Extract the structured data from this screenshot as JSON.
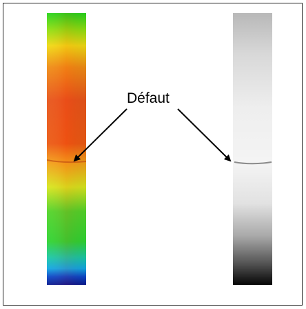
{
  "annotation": {
    "label": "Défaut"
  },
  "images": {
    "left_strip": "color-thermal-strip",
    "right_strip": "grayscale-strip"
  },
  "colors": {
    "thermal_top": "#1fd21c",
    "thermal_mid": "#e84a12",
    "thermal_low": "#31d82d",
    "thermal_bottom": "#0a1a9a",
    "gray_top": "#bdbdbd",
    "gray_mid": "#f3f3f3",
    "gray_bottom": "#050505",
    "arrow": "#000000"
  }
}
